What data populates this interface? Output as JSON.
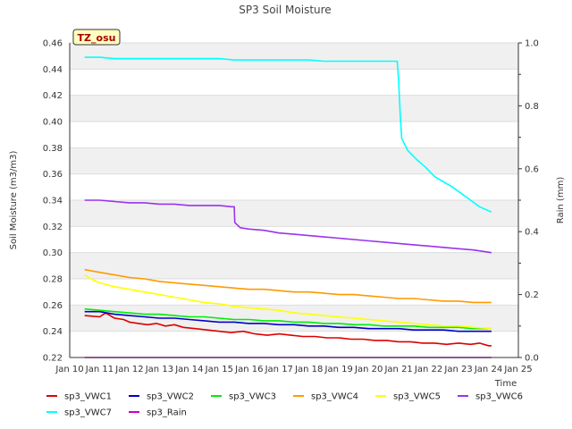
{
  "chart_data": {
    "type": "line",
    "title": "SP3 Soil Moisture",
    "station_tag": "TZ_osu",
    "xlabel": "Time",
    "ylabel": "Soil Moisture (m3/m3)",
    "y2label": "Rain (mm)",
    "x_ticks": [
      "Jan 10",
      "Jan 11",
      "Jan 12",
      "Jan 13",
      "Jan 14",
      "Jan 15",
      "Jan 16",
      "Jan 17",
      "Jan 18",
      "Jan 19",
      "Jan 20",
      "Jan 21",
      "Jan 22",
      "Jan 23",
      "Jan 24",
      "Jan 25"
    ],
    "xlim": [
      10,
      25
    ],
    "ylim": [
      0.22,
      0.46
    ],
    "y_ticks": [
      "0.22",
      "0.24",
      "0.26",
      "0.28",
      "0.30",
      "0.32",
      "0.34",
      "0.36",
      "0.38",
      "0.40",
      "0.42",
      "0.44",
      "0.46"
    ],
    "y2lim": [
      0.0,
      1.0
    ],
    "y2_ticks": [
      "0.0",
      "0.2",
      "0.4",
      "0.6",
      "0.8",
      "1.0"
    ],
    "grid": true,
    "legend_position": "bottom",
    "series": [
      {
        "name": "sp3_VWC1",
        "color": "#dd0000",
        "axis": "left",
        "points": [
          [
            10.5,
            0.252
          ],
          [
            11.0,
            0.251
          ],
          [
            11.2,
            0.254
          ],
          [
            11.5,
            0.25
          ],
          [
            11.8,
            0.249
          ],
          [
            12.0,
            0.247
          ],
          [
            12.3,
            0.246
          ],
          [
            12.6,
            0.245
          ],
          [
            12.9,
            0.246
          ],
          [
            13.2,
            0.244
          ],
          [
            13.5,
            0.245
          ],
          [
            13.8,
            0.243
          ],
          [
            14.2,
            0.242
          ],
          [
            14.6,
            0.241
          ],
          [
            15.0,
            0.24
          ],
          [
            15.4,
            0.239
          ],
          [
            15.8,
            0.24
          ],
          [
            16.2,
            0.238
          ],
          [
            16.6,
            0.237
          ],
          [
            17.0,
            0.238
          ],
          [
            17.4,
            0.237
          ],
          [
            17.8,
            0.236
          ],
          [
            18.2,
            0.236
          ],
          [
            18.6,
            0.235
          ],
          [
            19.0,
            0.235
          ],
          [
            19.4,
            0.234
          ],
          [
            19.8,
            0.234
          ],
          [
            20.2,
            0.233
          ],
          [
            20.6,
            0.233
          ],
          [
            21.0,
            0.232
          ],
          [
            21.4,
            0.232
          ],
          [
            21.8,
            0.231
          ],
          [
            22.2,
            0.231
          ],
          [
            22.6,
            0.23
          ],
          [
            23.0,
            0.231
          ],
          [
            23.4,
            0.23
          ],
          [
            23.7,
            0.231
          ],
          [
            24.0,
            0.229
          ],
          [
            24.1,
            0.229
          ]
        ]
      },
      {
        "name": "sp3_VWC2",
        "color": "#0000cc",
        "axis": "left",
        "points": [
          [
            10.5,
            0.255
          ],
          [
            11.0,
            0.255
          ],
          [
            11.5,
            0.253
          ],
          [
            12.0,
            0.252
          ],
          [
            12.5,
            0.251
          ],
          [
            13.0,
            0.25
          ],
          [
            13.5,
            0.25
          ],
          [
            14.0,
            0.249
          ],
          [
            14.5,
            0.248
          ],
          [
            15.0,
            0.247
          ],
          [
            15.5,
            0.247
          ],
          [
            16.0,
            0.246
          ],
          [
            16.5,
            0.246
          ],
          [
            17.0,
            0.245
          ],
          [
            17.5,
            0.245
          ],
          [
            18.0,
            0.244
          ],
          [
            18.5,
            0.244
          ],
          [
            19.0,
            0.243
          ],
          [
            19.5,
            0.243
          ],
          [
            20.0,
            0.242
          ],
          [
            20.5,
            0.242
          ],
          [
            21.0,
            0.242
          ],
          [
            21.5,
            0.241
          ],
          [
            22.0,
            0.241
          ],
          [
            22.5,
            0.241
          ],
          [
            23.0,
            0.24
          ],
          [
            23.5,
            0.24
          ],
          [
            24.1,
            0.24
          ]
        ]
      },
      {
        "name": "sp3_VWC3",
        "color": "#00ee00",
        "axis": "left",
        "points": [
          [
            10.5,
            0.257
          ],
          [
            11.0,
            0.256
          ],
          [
            11.5,
            0.255
          ],
          [
            12.0,
            0.254
          ],
          [
            12.5,
            0.253
          ],
          [
            13.0,
            0.253
          ],
          [
            13.5,
            0.252
          ],
          [
            14.0,
            0.251
          ],
          [
            14.5,
            0.251
          ],
          [
            15.0,
            0.25
          ],
          [
            15.5,
            0.249
          ],
          [
            16.0,
            0.249
          ],
          [
            16.5,
            0.248
          ],
          [
            17.0,
            0.248
          ],
          [
            17.5,
            0.247
          ],
          [
            18.0,
            0.247
          ],
          [
            18.5,
            0.246
          ],
          [
            19.0,
            0.246
          ],
          [
            19.5,
            0.245
          ],
          [
            20.0,
            0.245
          ],
          [
            20.5,
            0.244
          ],
          [
            21.0,
            0.244
          ],
          [
            21.5,
            0.244
          ],
          [
            22.0,
            0.243
          ],
          [
            22.5,
            0.243
          ],
          [
            23.0,
            0.243
          ],
          [
            23.5,
            0.242
          ],
          [
            24.1,
            0.242
          ]
        ]
      },
      {
        "name": "sp3_VWC4",
        "color": "#ff9900",
        "axis": "left",
        "points": [
          [
            10.5,
            0.287
          ],
          [
            11.0,
            0.285
          ],
          [
            11.5,
            0.283
          ],
          [
            12.0,
            0.281
          ],
          [
            12.5,
            0.28
          ],
          [
            13.0,
            0.278
          ],
          [
            13.5,
            0.277
          ],
          [
            14.0,
            0.276
          ],
          [
            14.5,
            0.275
          ],
          [
            15.0,
            0.274
          ],
          [
            15.5,
            0.273
          ],
          [
            16.0,
            0.272
          ],
          [
            16.5,
            0.272
          ],
          [
            17.0,
            0.271
          ],
          [
            17.5,
            0.27
          ],
          [
            18.0,
            0.27
          ],
          [
            18.5,
            0.269
          ],
          [
            19.0,
            0.268
          ],
          [
            19.5,
            0.268
          ],
          [
            20.0,
            0.267
          ],
          [
            20.5,
            0.266
          ],
          [
            21.0,
            0.265
          ],
          [
            21.5,
            0.265
          ],
          [
            22.0,
            0.264
          ],
          [
            22.5,
            0.263
          ],
          [
            23.0,
            0.263
          ],
          [
            23.5,
            0.262
          ],
          [
            24.1,
            0.262
          ]
        ]
      },
      {
        "name": "sp3_VWC5",
        "color": "#ffff00",
        "axis": "left",
        "points": [
          [
            10.5,
            0.283
          ],
          [
            10.7,
            0.28
          ],
          [
            11.0,
            0.277
          ],
          [
            11.5,
            0.274
          ],
          [
            12.0,
            0.272
          ],
          [
            12.5,
            0.27
          ],
          [
            13.0,
            0.268
          ],
          [
            13.5,
            0.266
          ],
          [
            14.0,
            0.264
          ],
          [
            14.5,
            0.262
          ],
          [
            15.0,
            0.261
          ],
          [
            15.5,
            0.259
          ],
          [
            16.0,
            0.258
          ],
          [
            16.5,
            0.257
          ],
          [
            17.0,
            0.256
          ],
          [
            17.5,
            0.254
          ],
          [
            18.0,
            0.253
          ],
          [
            18.5,
            0.252
          ],
          [
            19.0,
            0.251
          ],
          [
            19.5,
            0.25
          ],
          [
            20.0,
            0.249
          ],
          [
            20.5,
            0.248
          ],
          [
            21.0,
            0.247
          ],
          [
            21.5,
            0.246
          ],
          [
            22.0,
            0.245
          ],
          [
            22.5,
            0.244
          ],
          [
            23.0,
            0.244
          ],
          [
            23.5,
            0.243
          ],
          [
            24.1,
            0.242
          ]
        ]
      },
      {
        "name": "sp3_VWC6",
        "color": "#9933ee",
        "axis": "left",
        "points": [
          [
            10.5,
            0.34
          ],
          [
            11.0,
            0.34
          ],
          [
            11.5,
            0.339
          ],
          [
            12.0,
            0.338
          ],
          [
            12.5,
            0.338
          ],
          [
            13.0,
            0.337
          ],
          [
            13.5,
            0.337
          ],
          [
            14.0,
            0.336
          ],
          [
            14.5,
            0.336
          ],
          [
            15.0,
            0.336
          ],
          [
            15.4,
            0.335
          ],
          [
            15.5,
            0.335
          ],
          [
            15.52,
            0.323
          ],
          [
            15.7,
            0.319
          ],
          [
            16.0,
            0.318
          ],
          [
            16.5,
            0.317
          ],
          [
            17.0,
            0.315
          ],
          [
            17.5,
            0.314
          ],
          [
            18.0,
            0.313
          ],
          [
            18.5,
            0.312
          ],
          [
            19.0,
            0.311
          ],
          [
            19.5,
            0.31
          ],
          [
            20.0,
            0.309
          ],
          [
            20.5,
            0.308
          ],
          [
            21.0,
            0.307
          ],
          [
            21.5,
            0.306
          ],
          [
            22.0,
            0.305
          ],
          [
            22.5,
            0.304
          ],
          [
            23.0,
            0.303
          ],
          [
            23.5,
            0.302
          ],
          [
            24.1,
            0.3
          ]
        ]
      },
      {
        "name": "sp3_VWC7",
        "color": "#00ffff",
        "axis": "left",
        "points": [
          [
            10.5,
            0.449
          ],
          [
            11.0,
            0.449
          ],
          [
            11.5,
            0.448
          ],
          [
            12.0,
            0.448
          ],
          [
            12.5,
            0.448
          ],
          [
            13.0,
            0.448
          ],
          [
            13.5,
            0.448
          ],
          [
            14.0,
            0.448
          ],
          [
            14.5,
            0.448
          ],
          [
            15.0,
            0.448
          ],
          [
            15.5,
            0.447
          ],
          [
            16.0,
            0.447
          ],
          [
            16.5,
            0.447
          ],
          [
            17.0,
            0.447
          ],
          [
            17.5,
            0.447
          ],
          [
            18.0,
            0.447
          ],
          [
            18.5,
            0.446
          ],
          [
            19.0,
            0.446
          ],
          [
            19.5,
            0.446
          ],
          [
            20.0,
            0.446
          ],
          [
            20.5,
            0.446
          ],
          [
            20.95,
            0.446
          ],
          [
            21.0,
            0.43
          ],
          [
            21.05,
            0.405
          ],
          [
            21.1,
            0.387
          ],
          [
            21.3,
            0.378
          ],
          [
            21.6,
            0.371
          ],
          [
            21.9,
            0.365
          ],
          [
            22.2,
            0.358
          ],
          [
            22.5,
            0.354
          ],
          [
            22.8,
            0.35
          ],
          [
            23.1,
            0.345
          ],
          [
            23.4,
            0.34
          ],
          [
            23.7,
            0.335
          ],
          [
            24.1,
            0.331
          ]
        ]
      },
      {
        "name": "sp3_Rain",
        "color": "#cc00cc",
        "axis": "right",
        "points": [
          [
            10.5,
            0.0
          ],
          [
            24.1,
            0.0
          ]
        ]
      }
    ]
  }
}
